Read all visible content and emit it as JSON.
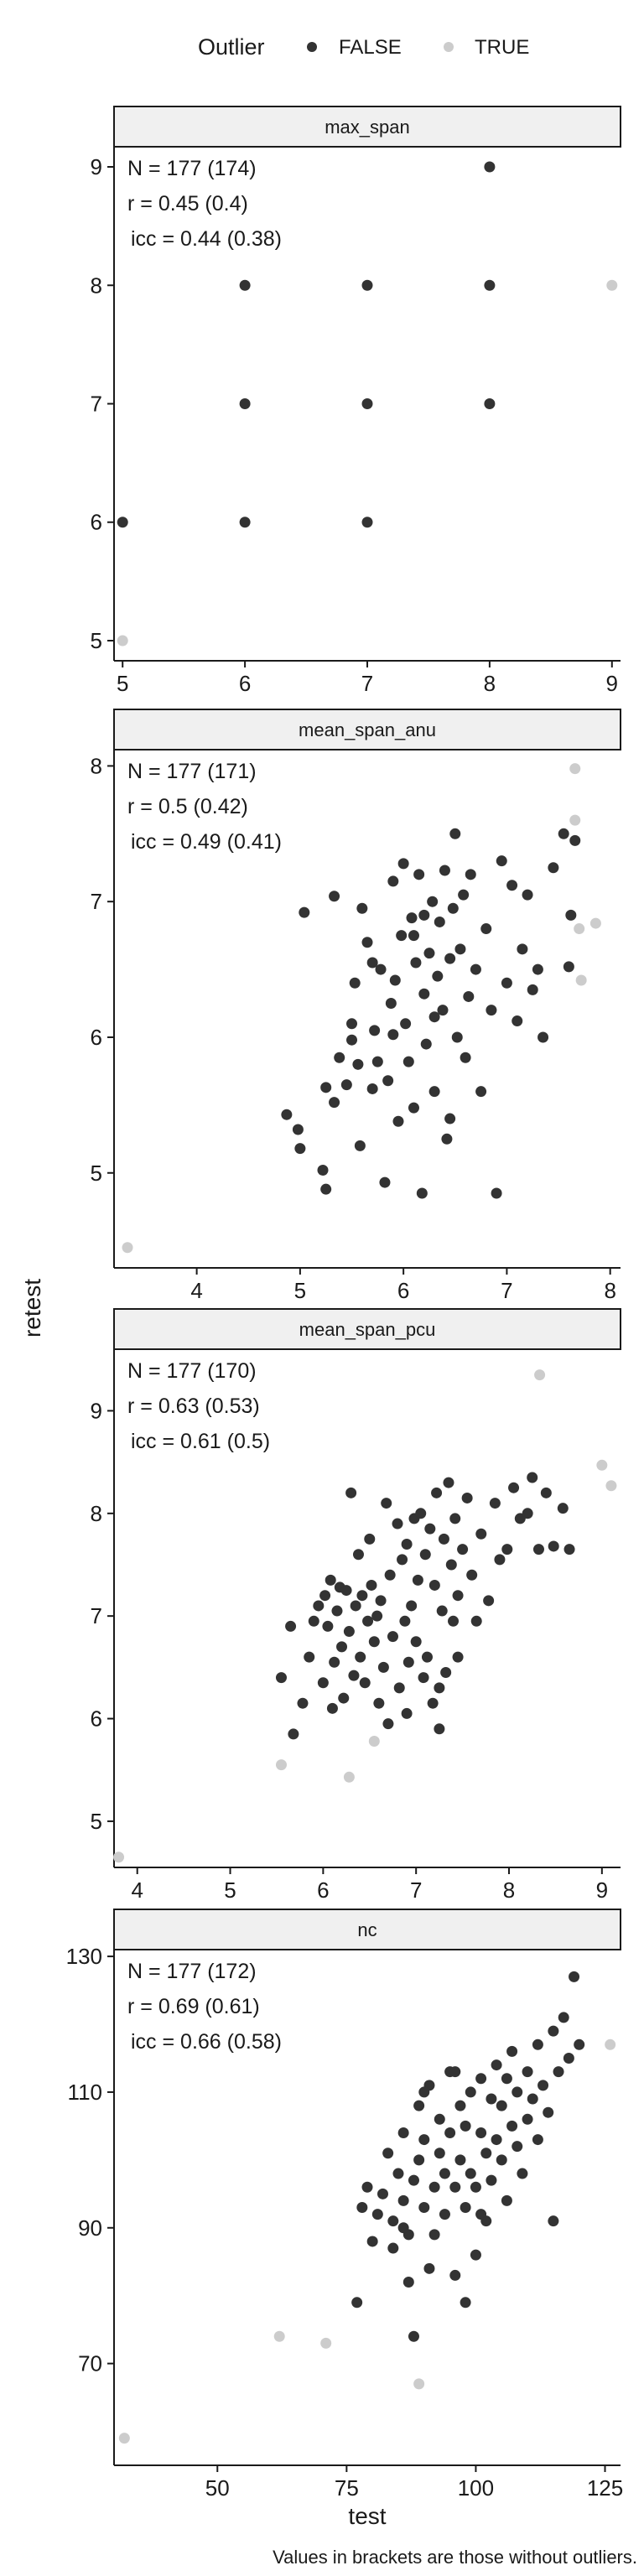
{
  "legend": {
    "title": "Outlier",
    "items": [
      {
        "label": "FALSE",
        "color": "#333333"
      },
      {
        "label": "TRUE",
        "color": "#cccccc"
      }
    ]
  },
  "colors": {
    "inlier": "#333333",
    "outlier": "#cccccc",
    "strip_fill": "#f0f0f0",
    "axis": "#1a1a1a"
  },
  "ylabel": "retest",
  "xlabel": "test",
  "caption": "Values in brackets are those without outliers.",
  "chart_data": [
    {
      "type": "scatter",
      "facet": "max_span",
      "stats": [
        "N = 177 (174)",
        "r = 0.45 (0.4)",
        "icc = 0.44 (0.38)"
      ],
      "xlim": [
        4.93,
        9.07
      ],
      "ylim": [
        4.83,
        9.17
      ],
      "xticks": [
        5,
        6,
        7,
        8,
        9
      ],
      "yticks": [
        5,
        6,
        7,
        8,
        9
      ],
      "points_inlier": [
        [
          5,
          6
        ],
        [
          6,
          6
        ],
        [
          6,
          7
        ],
        [
          6,
          8
        ],
        [
          7,
          6
        ],
        [
          7,
          7
        ],
        [
          7,
          8
        ],
        [
          8,
          7
        ],
        [
          8,
          8
        ],
        [
          8,
          9
        ]
      ],
      "points_outlier": [
        [
          5,
          5
        ],
        [
          9,
          8
        ]
      ]
    },
    {
      "type": "scatter",
      "facet": "mean_span_anu",
      "stats": [
        "N = 177 (171)",
        "r = 0.5 (0.42)",
        "icc = 0.49 (0.41)"
      ],
      "xlim": [
        3.2,
        8.1
      ],
      "ylim": [
        4.3,
        8.12
      ],
      "xticks": [
        4,
        5,
        6,
        7,
        8
      ],
      "yticks": [
        5,
        6,
        7,
        8
      ],
      "points_inlier": [
        [
          4.87,
          5.43
        ],
        [
          4.98,
          5.32
        ],
        [
          5.0,
          5.18
        ],
        [
          5.04,
          6.92
        ],
        [
          5.22,
          5.02
        ],
        [
          5.25,
          5.63
        ],
        [
          5.33,
          5.52
        ],
        [
          5.38,
          5.85
        ],
        [
          5.25,
          4.88
        ],
        [
          5.33,
          7.04
        ],
        [
          5.45,
          5.65
        ],
        [
          5.5,
          6.1
        ],
        [
          5.53,
          6.4
        ],
        [
          5.56,
          5.8
        ],
        [
          5.58,
          5.2
        ],
        [
          5.6,
          6.95
        ],
        [
          5.65,
          6.7
        ],
        [
          5.7,
          5.62
        ],
        [
          5.72,
          6.05
        ],
        [
          5.75,
          5.82
        ],
        [
          5.78,
          6.5
        ],
        [
          5.82,
          4.93
        ],
        [
          5.85,
          5.68
        ],
        [
          5.88,
          6.25
        ],
        [
          5.9,
          7.15
        ],
        [
          5.92,
          6.42
        ],
        [
          5.95,
          5.38
        ],
        [
          5.98,
          6.75
        ],
        [
          6.0,
          7.28
        ],
        [
          6.02,
          6.1
        ],
        [
          6.05,
          5.82
        ],
        [
          6.08,
          6.88
        ],
        [
          6.1,
          5.48
        ],
        [
          6.12,
          6.55
        ],
        [
          6.15,
          7.2
        ],
        [
          6.18,
          4.85
        ],
        [
          6.2,
          6.32
        ],
        [
          6.22,
          5.95
        ],
        [
          6.25,
          6.62
        ],
        [
          6.28,
          7.0
        ],
        [
          6.3,
          5.6
        ],
        [
          6.33,
          6.45
        ],
        [
          6.35,
          6.85
        ],
        [
          6.38,
          6.2
        ],
        [
          6.4,
          7.23
        ],
        [
          6.42,
          5.25
        ],
        [
          6.45,
          6.58
        ],
        [
          6.48,
          6.95
        ],
        [
          6.5,
          7.5
        ],
        [
          6.52,
          6.0
        ],
        [
          6.55,
          6.65
        ],
        [
          6.58,
          7.05
        ],
        [
          6.6,
          5.85
        ],
        [
          6.63,
          6.3
        ],
        [
          6.65,
          7.2
        ],
        [
          6.7,
          6.5
        ],
        [
          6.75,
          5.6
        ],
        [
          6.8,
          6.8
        ],
        [
          6.85,
          6.2
        ],
        [
          6.9,
          4.85
        ],
        [
          6.95,
          7.3
        ],
        [
          7.0,
          6.4
        ],
        [
          7.05,
          7.12
        ],
        [
          7.1,
          6.12
        ],
        [
          7.15,
          6.65
        ],
        [
          7.2,
          7.05
        ],
        [
          7.25,
          6.35
        ],
        [
          7.3,
          6.5
        ],
        [
          7.35,
          6.0
        ],
        [
          7.45,
          7.25
        ],
        [
          7.55,
          7.5
        ],
        [
          7.62,
          6.9
        ],
        [
          7.66,
          7.45
        ],
        [
          7.6,
          6.52
        ],
        [
          5.9,
          6.02
        ],
        [
          6.1,
          6.75
        ],
        [
          6.3,
          6.15
        ],
        [
          6.45,
          5.4
        ],
        [
          5.7,
          6.55
        ],
        [
          5.5,
          5.98
        ],
        [
          6.2,
          6.9
        ]
      ],
      "points_outlier": [
        [
          3.33,
          4.45
        ],
        [
          7.66,
          7.98
        ],
        [
          7.66,
          7.6
        ],
        [
          7.7,
          6.8
        ],
        [
          7.72,
          6.42
        ],
        [
          7.86,
          6.84
        ]
      ]
    },
    {
      "type": "scatter",
      "facet": "mean_span_pcu",
      "stats": [
        "N = 177 (170)",
        "r = 0.63 (0.53)",
        "icc = 0.61 (0.5)"
      ],
      "xlim": [
        3.75,
        9.2
      ],
      "ylim": [
        4.55,
        9.6
      ],
      "xticks": [
        4,
        5,
        6,
        7,
        8,
        9
      ],
      "yticks": [
        5,
        6,
        7,
        8,
        9
      ],
      "points_inlier": [
        [
          5.55,
          6.4
        ],
        [
          5.65,
          6.9
        ],
        [
          5.68,
          5.85
        ],
        [
          5.78,
          6.15
        ],
        [
          5.85,
          6.6
        ],
        [
          5.9,
          6.95
        ],
        [
          5.95,
          7.1
        ],
        [
          6.0,
          6.35
        ],
        [
          6.02,
          7.2
        ],
        [
          6.05,
          6.9
        ],
        [
          6.08,
          7.35
        ],
        [
          6.1,
          6.1
        ],
        [
          6.12,
          6.55
        ],
        [
          6.15,
          7.05
        ],
        [
          6.18,
          7.28
        ],
        [
          6.2,
          6.7
        ],
        [
          6.22,
          6.2
        ],
        [
          6.25,
          7.25
        ],
        [
          6.28,
          6.85
        ],
        [
          6.3,
          8.2
        ],
        [
          6.33,
          6.42
        ],
        [
          6.35,
          7.1
        ],
        [
          6.38,
          7.6
        ],
        [
          6.4,
          6.6
        ],
        [
          6.42,
          7.2
        ],
        [
          6.45,
          6.35
        ],
        [
          6.48,
          6.95
        ],
        [
          6.5,
          7.75
        ],
        [
          6.52,
          7.3
        ],
        [
          6.55,
          6.75
        ],
        [
          6.58,
          7.0
        ],
        [
          6.6,
          6.15
        ],
        [
          6.62,
          7.15
        ],
        [
          6.65,
          6.5
        ],
        [
          6.68,
          8.1
        ],
        [
          6.7,
          5.95
        ],
        [
          6.72,
          7.4
        ],
        [
          6.75,
          6.8
        ],
        [
          6.8,
          7.9
        ],
        [
          6.82,
          6.3
        ],
        [
          6.85,
          7.55
        ],
        [
          6.88,
          6.95
        ],
        [
          6.9,
          7.7
        ],
        [
          6.92,
          6.55
        ],
        [
          6.95,
          7.1
        ],
        [
          6.98,
          7.95
        ],
        [
          7.0,
          6.75
        ],
        [
          7.02,
          7.35
        ],
        [
          7.05,
          8.0
        ],
        [
          7.08,
          6.4
        ],
        [
          7.1,
          7.6
        ],
        [
          7.12,
          6.6
        ],
        [
          7.15,
          7.85
        ],
        [
          7.18,
          6.15
        ],
        [
          7.2,
          7.3
        ],
        [
          7.22,
          8.2
        ],
        [
          7.25,
          5.9
        ],
        [
          7.28,
          7.05
        ],
        [
          7.3,
          7.75
        ],
        [
          7.32,
          6.45
        ],
        [
          7.35,
          8.3
        ],
        [
          7.38,
          7.5
        ],
        [
          7.4,
          6.95
        ],
        [
          7.42,
          7.95
        ],
        [
          7.45,
          7.2
        ],
        [
          7.5,
          7.65
        ],
        [
          7.55,
          8.15
        ],
        [
          7.6,
          7.4
        ],
        [
          7.65,
          6.95
        ],
        [
          7.7,
          7.8
        ],
        [
          7.78,
          7.15
        ],
        [
          7.85,
          8.1
        ],
        [
          7.9,
          7.55
        ],
        [
          7.98,
          7.65
        ],
        [
          8.05,
          8.25
        ],
        [
          8.12,
          7.95
        ],
        [
          8.2,
          8.0
        ],
        [
          8.25,
          8.35
        ],
        [
          8.32,
          7.65
        ],
        [
          8.4,
          8.2
        ],
        [
          8.48,
          7.68
        ],
        [
          8.58,
          8.05
        ],
        [
          8.65,
          7.65
        ],
        [
          7.25,
          6.3
        ],
        [
          6.9,
          6.05
        ],
        [
          7.45,
          6.6
        ]
      ],
      "points_outlier": [
        [
          3.8,
          4.65
        ],
        [
          5.55,
          5.55
        ],
        [
          6.28,
          5.43
        ],
        [
          6.55,
          5.78
        ],
        [
          8.33,
          9.35
        ],
        [
          9.0,
          8.47
        ],
        [
          9.1,
          8.27
        ]
      ]
    },
    {
      "type": "scatter",
      "facet": "nc",
      "stats": [
        "N = 177 (172)",
        "r = 0.69 (0.61)",
        "icc = 0.66 (0.58)"
      ],
      "xlim": [
        30,
        128
      ],
      "ylim": [
        55,
        131
      ],
      "xticks": [
        50,
        75,
        100,
        125
      ],
      "yticks": [
        70,
        90,
        110,
        130
      ],
      "points_inlier": [
        [
          77,
          79
        ],
        [
          78,
          93
        ],
        [
          79,
          96
        ],
        [
          80,
          88
        ],
        [
          81,
          92
        ],
        [
          82,
          95
        ],
        [
          83,
          101
        ],
        [
          84,
          87
        ],
        [
          84,
          91
        ],
        [
          85,
          98
        ],
        [
          86,
          94
        ],
        [
          86,
          104
        ],
        [
          87,
          89
        ],
        [
          87,
          82
        ],
        [
          88,
          97
        ],
        [
          88,
          74
        ],
        [
          89,
          108
        ],
        [
          89,
          100
        ],
        [
          90,
          93
        ],
        [
          90,
          103
        ],
        [
          91,
          84
        ],
        [
          91,
          111
        ],
        [
          92,
          96
        ],
        [
          92,
          89
        ],
        [
          93,
          101
        ],
        [
          93,
          106
        ],
        [
          94,
          98
        ],
        [
          94,
          92
        ],
        [
          95,
          104
        ],
        [
          95,
          113
        ],
        [
          96,
          96
        ],
        [
          96,
          83
        ],
        [
          97,
          108
        ],
        [
          97,
          100
        ],
        [
          98,
          93
        ],
        [
          98,
          105
        ],
        [
          99,
          110
        ],
        [
          99,
          98
        ],
        [
          100,
          96
        ],
        [
          100,
          86
        ],
        [
          101,
          112
        ],
        [
          101,
          104
        ],
        [
          102,
          101
        ],
        [
          102,
          91
        ],
        [
          103,
          109
        ],
        [
          103,
          97
        ],
        [
          104,
          114
        ],
        [
          104,
          103
        ],
        [
          105,
          100
        ],
        [
          105,
          108
        ],
        [
          106,
          112
        ],
        [
          106,
          94
        ],
        [
          107,
          105
        ],
        [
          107,
          116
        ],
        [
          108,
          102
        ],
        [
          108,
          110
        ],
        [
          109,
          98
        ],
        [
          110,
          113
        ],
        [
          110,
          106
        ],
        [
          111,
          109
        ],
        [
          112,
          103
        ],
        [
          112,
          117
        ],
        [
          113,
          111
        ],
        [
          114,
          107
        ],
        [
          115,
          119
        ],
        [
          115,
          91
        ],
        [
          116,
          113
        ],
        [
          117,
          121
        ],
        [
          118,
          115
        ],
        [
          119,
          127
        ],
        [
          120,
          117
        ],
        [
          96,
          113
        ],
        [
          101,
          92
        ],
        [
          98,
          79
        ],
        [
          86,
          90
        ],
        [
          90,
          110
        ]
      ],
      "points_outlier": [
        [
          32,
          59
        ],
        [
          62,
          74
        ],
        [
          71,
          73
        ],
        [
          89,
          67
        ],
        [
          126,
          117
        ]
      ]
    }
  ]
}
